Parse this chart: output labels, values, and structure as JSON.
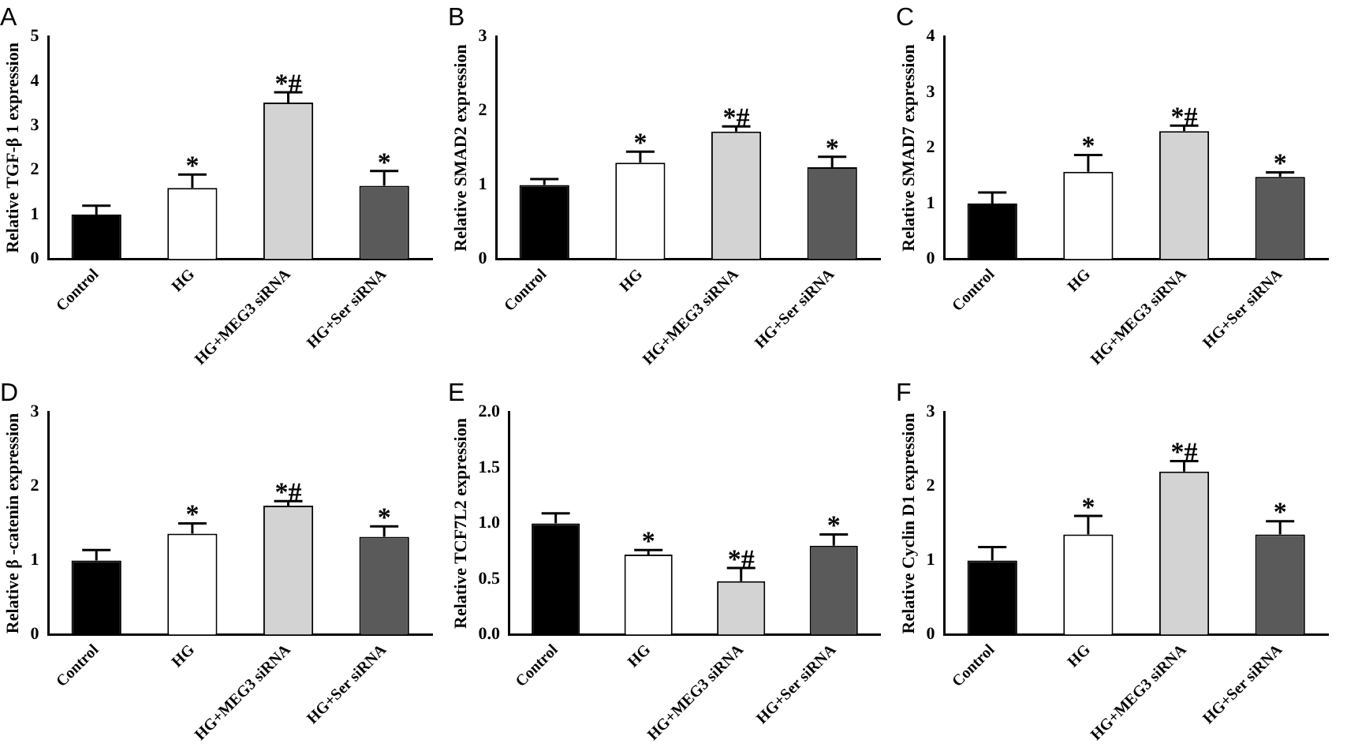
{
  "chart_data": [
    {
      "type": "bar",
      "title": "A",
      "ylabel": "Relative TGF-β 1 expression",
      "categories": [
        "Control",
        "HG",
        "HG+MEG3 siRNA",
        "HG+Ser siRNA"
      ],
      "values": [
        1.0,
        1.6,
        3.52,
        1.65
      ],
      "colors": [
        "#000000",
        "#ffffff",
        "#d3d3d3",
        "#5a5a5a"
      ],
      "errors": [
        [
          1.0,
          1.2
        ],
        [
          1.6,
          1.9
        ],
        [
          3.52,
          3.75
        ],
        [
          1.65,
          1.98
        ]
      ],
      "ylim": [
        0,
        5
      ],
      "yticks": [
        0,
        1,
        2,
        3,
        4,
        5
      ],
      "grid": false,
      "legend": false,
      "annotations": [
        {
          "text": "*",
          "x": "HG",
          "y": 1.9
        },
        {
          "text": "*#",
          "x": "HG+MEG3 siRNA",
          "y": 3.75
        },
        {
          "text": "*",
          "x": "HG+Ser siRNA",
          "y": 1.98
        }
      ]
    },
    {
      "type": "bar",
      "title": "B",
      "ylabel": "Relative SMAD2 expression",
      "categories": [
        "Control",
        "HG",
        "HG+MEG3 siRNA",
        "HG+Ser siRNA"
      ],
      "values": [
        1.0,
        1.3,
        1.72,
        1.24
      ],
      "colors": [
        "#000000",
        "#ffffff",
        "#d3d3d3",
        "#5a5a5a"
      ],
      "errors": [
        [
          1.0,
          1.08
        ],
        [
          1.3,
          1.45
        ],
        [
          1.72,
          1.79
        ],
        [
          1.24,
          1.38
        ]
      ],
      "ylim": [
        0,
        3
      ],
      "yticks": [
        0,
        1,
        2,
        3
      ],
      "grid": false,
      "legend": false,
      "annotations": [
        {
          "text": "*",
          "x": "HG",
          "y": 1.45
        },
        {
          "text": "*#",
          "x": "HG+MEG3 siRNA",
          "y": 1.79
        },
        {
          "text": "*",
          "x": "HG+Ser siRNA",
          "y": 1.38
        }
      ]
    },
    {
      "type": "bar",
      "title": "C",
      "ylabel": "Relative SMAD7 expression",
      "categories": [
        "Control",
        "HG",
        "HG+MEG3 siRNA",
        "HG+Ser siRNA"
      ],
      "values": [
        1.0,
        1.57,
        2.3,
        1.48
      ],
      "colors": [
        "#000000",
        "#ffffff",
        "#d3d3d3",
        "#5a5a5a"
      ],
      "errors": [
        [
          1.0,
          1.2
        ],
        [
          1.57,
          1.87
        ],
        [
          2.3,
          2.4
        ],
        [
          1.48,
          1.56
        ]
      ],
      "ylim": [
        0,
        4
      ],
      "yticks": [
        0,
        1,
        2,
        3,
        4
      ],
      "grid": false,
      "legend": false,
      "annotations": [
        {
          "text": "*",
          "x": "HG",
          "y": 1.87
        },
        {
          "text": "*#",
          "x": "HG+MEG3 siRNA",
          "y": 2.4
        },
        {
          "text": "*",
          "x": "HG+Ser siRNA",
          "y": 1.56
        }
      ]
    },
    {
      "type": "bar",
      "title": "D",
      "ylabel": "Relative β -catenin expression",
      "categories": [
        "Control",
        "HG",
        "HG+MEG3 siRNA",
        "HG+Ser siRNA"
      ],
      "values": [
        1.0,
        1.36,
        1.74,
        1.32
      ],
      "colors": [
        "#000000",
        "#ffffff",
        "#d3d3d3",
        "#5a5a5a"
      ],
      "errors": [
        [
          1.0,
          1.14
        ],
        [
          1.36,
          1.5
        ],
        [
          1.74,
          1.8
        ],
        [
          1.32,
          1.46
        ]
      ],
      "ylim": [
        0,
        3
      ],
      "yticks": [
        0,
        1,
        2,
        3
      ],
      "grid": false,
      "legend": false,
      "annotations": [
        {
          "text": "*",
          "x": "HG",
          "y": 1.5
        },
        {
          "text": "*#",
          "x": "HG+MEG3 siRNA",
          "y": 1.8
        },
        {
          "text": "*",
          "x": "HG+Ser siRNA",
          "y": 1.46
        }
      ]
    },
    {
      "type": "bar",
      "title": "E",
      "ylabel": "Relative TCF7L2 expression",
      "categories": [
        "Control",
        "HG",
        "HG+MEG3 siRNA",
        "HG+Ser siRNA"
      ],
      "values": [
        1.0,
        0.72,
        0.48,
        0.8
      ],
      "colors": [
        "#000000",
        "#ffffff",
        "#d3d3d3",
        "#5a5a5a"
      ],
      "errors": [
        [
          1.0,
          1.09
        ],
        [
          0.72,
          0.76
        ],
        [
          0.48,
          0.6
        ],
        [
          0.8,
          0.9
        ]
      ],
      "ylim": [
        0,
        2
      ],
      "yticks": [
        {
          "value": 0,
          "label": "0.0"
        },
        {
          "value": 0.5,
          "label": "0.5"
        },
        {
          "value": 1,
          "label": "1.0"
        },
        {
          "value": 1.5,
          "label": "1.5"
        },
        {
          "value": 2,
          "label": "2.0"
        }
      ],
      "grid": false,
      "legend": false,
      "annotations": [
        {
          "text": "*",
          "x": "HG",
          "y": 0.76
        },
        {
          "text": "*#",
          "x": "HG+MEG3 siRNA",
          "y": 0.6
        },
        {
          "text": "*",
          "x": "HG+Ser siRNA",
          "y": 0.9
        }
      ]
    },
    {
      "type": "bar",
      "title": "F",
      "ylabel": "Relative Cyclin D1 expression",
      "categories": [
        "Control",
        "HG",
        "HG+MEG3 siRNA",
        "HG+Ser siRNA"
      ],
      "values": [
        1.0,
        1.35,
        2.2,
        1.35
      ],
      "colors": [
        "#000000",
        "#ffffff",
        "#d3d3d3",
        "#5a5a5a"
      ],
      "errors": [
        [
          1.0,
          1.18
        ],
        [
          1.35,
          1.6
        ],
        [
          2.2,
          2.34
        ],
        [
          1.35,
          1.53
        ]
      ],
      "ylim": [
        0,
        3
      ],
      "yticks": [
        0,
        1,
        2,
        3
      ],
      "grid": false,
      "legend": false,
      "annotations": [
        {
          "text": "*",
          "x": "HG",
          "y": 1.6
        },
        {
          "text": "*#",
          "x": "HG+MEG3 siRNA",
          "y": 2.34
        },
        {
          "text": "*",
          "x": "HG+Ser siRNA",
          "y": 1.53
        }
      ]
    }
  ]
}
